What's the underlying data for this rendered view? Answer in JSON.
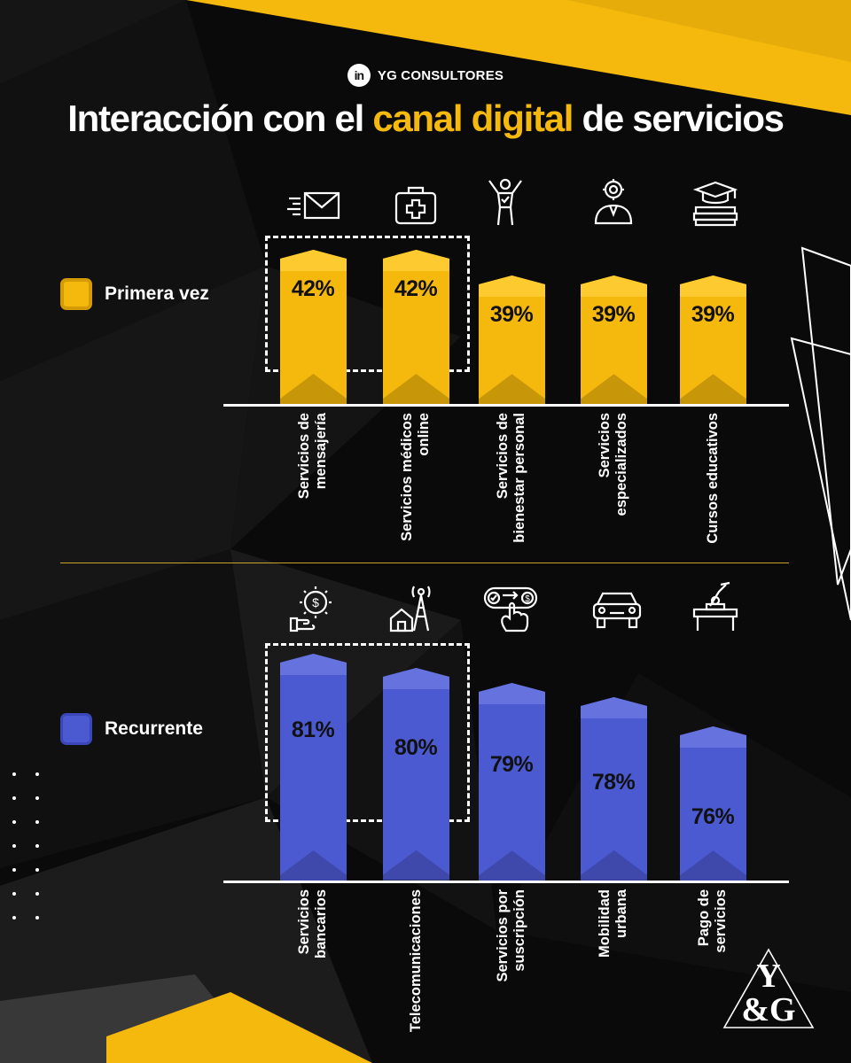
{
  "brand": {
    "logo_text": "in",
    "name": "YG CONSULTORES"
  },
  "title": {
    "part1": "Interacción con el ",
    "highlight": "canal digital",
    "part2": " de servicios"
  },
  "colors": {
    "yellow": "#f5b80c",
    "blue": "#4c5ad1",
    "background": "#0a0a0a",
    "text": "#ffffff"
  },
  "chart_data": [
    {
      "type": "bar",
      "legend": "Primera vez",
      "color": "#f5b80c",
      "unit": "%",
      "categories": [
        "Servicios de mensajería",
        "Servicios médicos online",
        "Servicios de bienestar personal",
        "Servicios especializados",
        "Cursos educativos"
      ],
      "category_lines": [
        [
          "Servicios de",
          "mensajería"
        ],
        [
          "Servicios médicos",
          "online"
        ],
        [
          "Servicios de",
          "bienestar personal"
        ],
        [
          "Servicios",
          "especializados"
        ],
        [
          "Cursos educativos"
        ]
      ],
      "values": [
        42,
        42,
        39,
        39,
        39
      ],
      "labels": [
        "42%",
        "42%",
        "39%",
        "39%",
        "39%"
      ],
      "icons": [
        "email-icon",
        "medical-kit-icon",
        "wellbeing-person-icon",
        "specialist-icon",
        "graduation-books-icon"
      ],
      "highlighted": [
        0,
        1
      ]
    },
    {
      "type": "bar",
      "legend": "Recurrente",
      "color": "#4c5ad1",
      "unit": "%",
      "categories": [
        "Servicios bancarios",
        "Telecomunicaciones",
        "Servicios por suscripción",
        "Mobilidad urbana",
        "Pago de servicios"
      ],
      "category_lines": [
        [
          "Servicios",
          "bancarios"
        ],
        [
          "Telecomunicaciones"
        ],
        [
          "Servicios por",
          "suscripción"
        ],
        [
          "Mobilidad",
          "urbana"
        ],
        [
          "Pago de",
          "servicios"
        ]
      ],
      "values": [
        81,
        80,
        79,
        78,
        76
      ],
      "labels": [
        "81%",
        "80%",
        "79%",
        "78%",
        "76%"
      ],
      "icons": [
        "banking-icon",
        "telecom-tower-icon",
        "subscription-icon",
        "car-icon",
        "bill-payment-icon"
      ],
      "highlighted": [
        0,
        1
      ]
    }
  ],
  "monogram": {
    "line1": "Y",
    "line2": "&G"
  }
}
